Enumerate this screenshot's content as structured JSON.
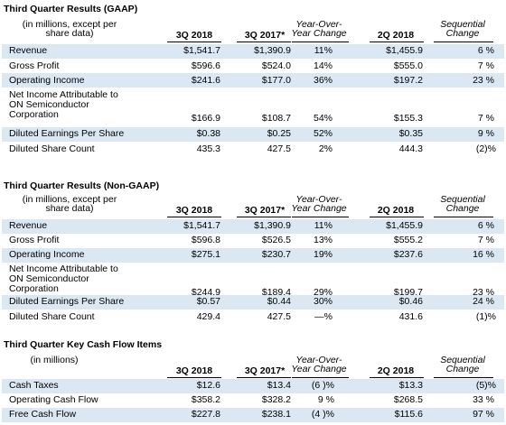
{
  "sections": [
    {
      "title": "Third Quarter Results (GAAP)",
      "header": {
        "units": "(in millions, except per share data)",
        "col1": "3Q 2018",
        "col2": "3Q 2017*",
        "col3": "Year-Over-Year Change",
        "col4": "2Q 2018",
        "col5": "Sequential Change"
      },
      "rows": [
        {
          "label": "Revenue",
          "c1": "$1,541.7",
          "c2": "$1,390.9",
          "c3": "11%",
          "c4": "$1,455.9",
          "c5": "6 %"
        },
        {
          "label": "Gross Profit",
          "c1": "$596.6",
          "c2": "$524.0",
          "c3": "14%",
          "c4": "$555.0",
          "c5": "7 %"
        },
        {
          "label": "Operating Income",
          "c1": "$241.6",
          "c2": "$177.0",
          "c3": "36%",
          "c4": "$197.2",
          "c5": "23 %"
        },
        {
          "label": "Net Income Attributable to ON Semiconductor Corporation",
          "c1": "$166.9",
          "c2": "$108.7",
          "c3": "54%",
          "c4": "$155.3",
          "c5": "7 %"
        },
        {
          "label": "Diluted Earnings Per Share",
          "c1": "$0.38",
          "c2": "$0.25",
          "c3": "52%",
          "c4": "$0.35",
          "c5": "9 %"
        },
        {
          "label": "Diluted Share Count",
          "c1": "435.3",
          "c2": "427.5",
          "c3": "2%",
          "c4": "444.3",
          "c5": "(2)%"
        }
      ]
    },
    {
      "title": "Third Quarter Results (Non-GAAP)",
      "header": {
        "units": "(in millions, except per share data)",
        "col1": "3Q 2018",
        "col2": "3Q 2017*",
        "col3": "Year-Over-Year Change",
        "col4": "2Q 2018",
        "col5": "Sequential Change"
      },
      "rows": [
        {
          "label": "Revenue",
          "c1": "$1,541.7",
          "c2": "$1,390.9",
          "c3": "11%",
          "c4": "$1,455.9",
          "c5": "6 %"
        },
        {
          "label": "Gross Profit",
          "c1": "$596.8",
          "c2": "$526.5",
          "c3": "13%",
          "c4": "$555.2",
          "c5": "7 %"
        },
        {
          "label": "Operating Income",
          "c1": "$275.1",
          "c2": "$230.7",
          "c3": "19%",
          "c4": "$237.6",
          "c5": "16 %"
        },
        {
          "label": "Net Income Attributable to ON Semiconductor Corporation",
          "c1": "$244.9",
          "c2": "$189.4",
          "c3": "29%",
          "c4": "$199.7",
          "c5": "23 %"
        },
        {
          "label": "Diluted Earnings Per Share",
          "c1": "$0.57",
          "c2": "$0.44",
          "c3": "30%",
          "c4": "$0.46",
          "c5": "24 %"
        },
        {
          "label": "Diluted Share Count",
          "c1": "429.4",
          "c2": "427.5",
          "c3": "—%",
          "c4": "431.6",
          "c5": "(1)%"
        }
      ]
    },
    {
      "title": "Third Quarter Key Cash Flow Items",
      "header": {
        "units": "(in millions)",
        "col1": "3Q 2018",
        "col2": "3Q 2017*",
        "col3": "Year-Over-Year Change",
        "col4": "2Q 2018",
        "col5": "Sequential Change"
      },
      "rows": [
        {
          "label": "Cash Taxes",
          "c1": "$12.6",
          "c2": "$13.4",
          "c3": "(6 )%",
          "c4": "$13.3",
          "c5": "(5)%"
        },
        {
          "label": "Operating Cash Flow",
          "c1": "$358.2",
          "c2": "$328.2",
          "c3": "9 %",
          "c4": "$268.5",
          "c5": "33 %"
        },
        {
          "label": "Free Cash Flow",
          "c1": "$227.8",
          "c2": "$238.1",
          "c3": "(4 )%",
          "c4": "$115.6",
          "c5": "97 %"
        }
      ]
    }
  ],
  "colors": {
    "row_shade": "#dbe8f4",
    "text": "#000000",
    "background": "#ffffff"
  }
}
